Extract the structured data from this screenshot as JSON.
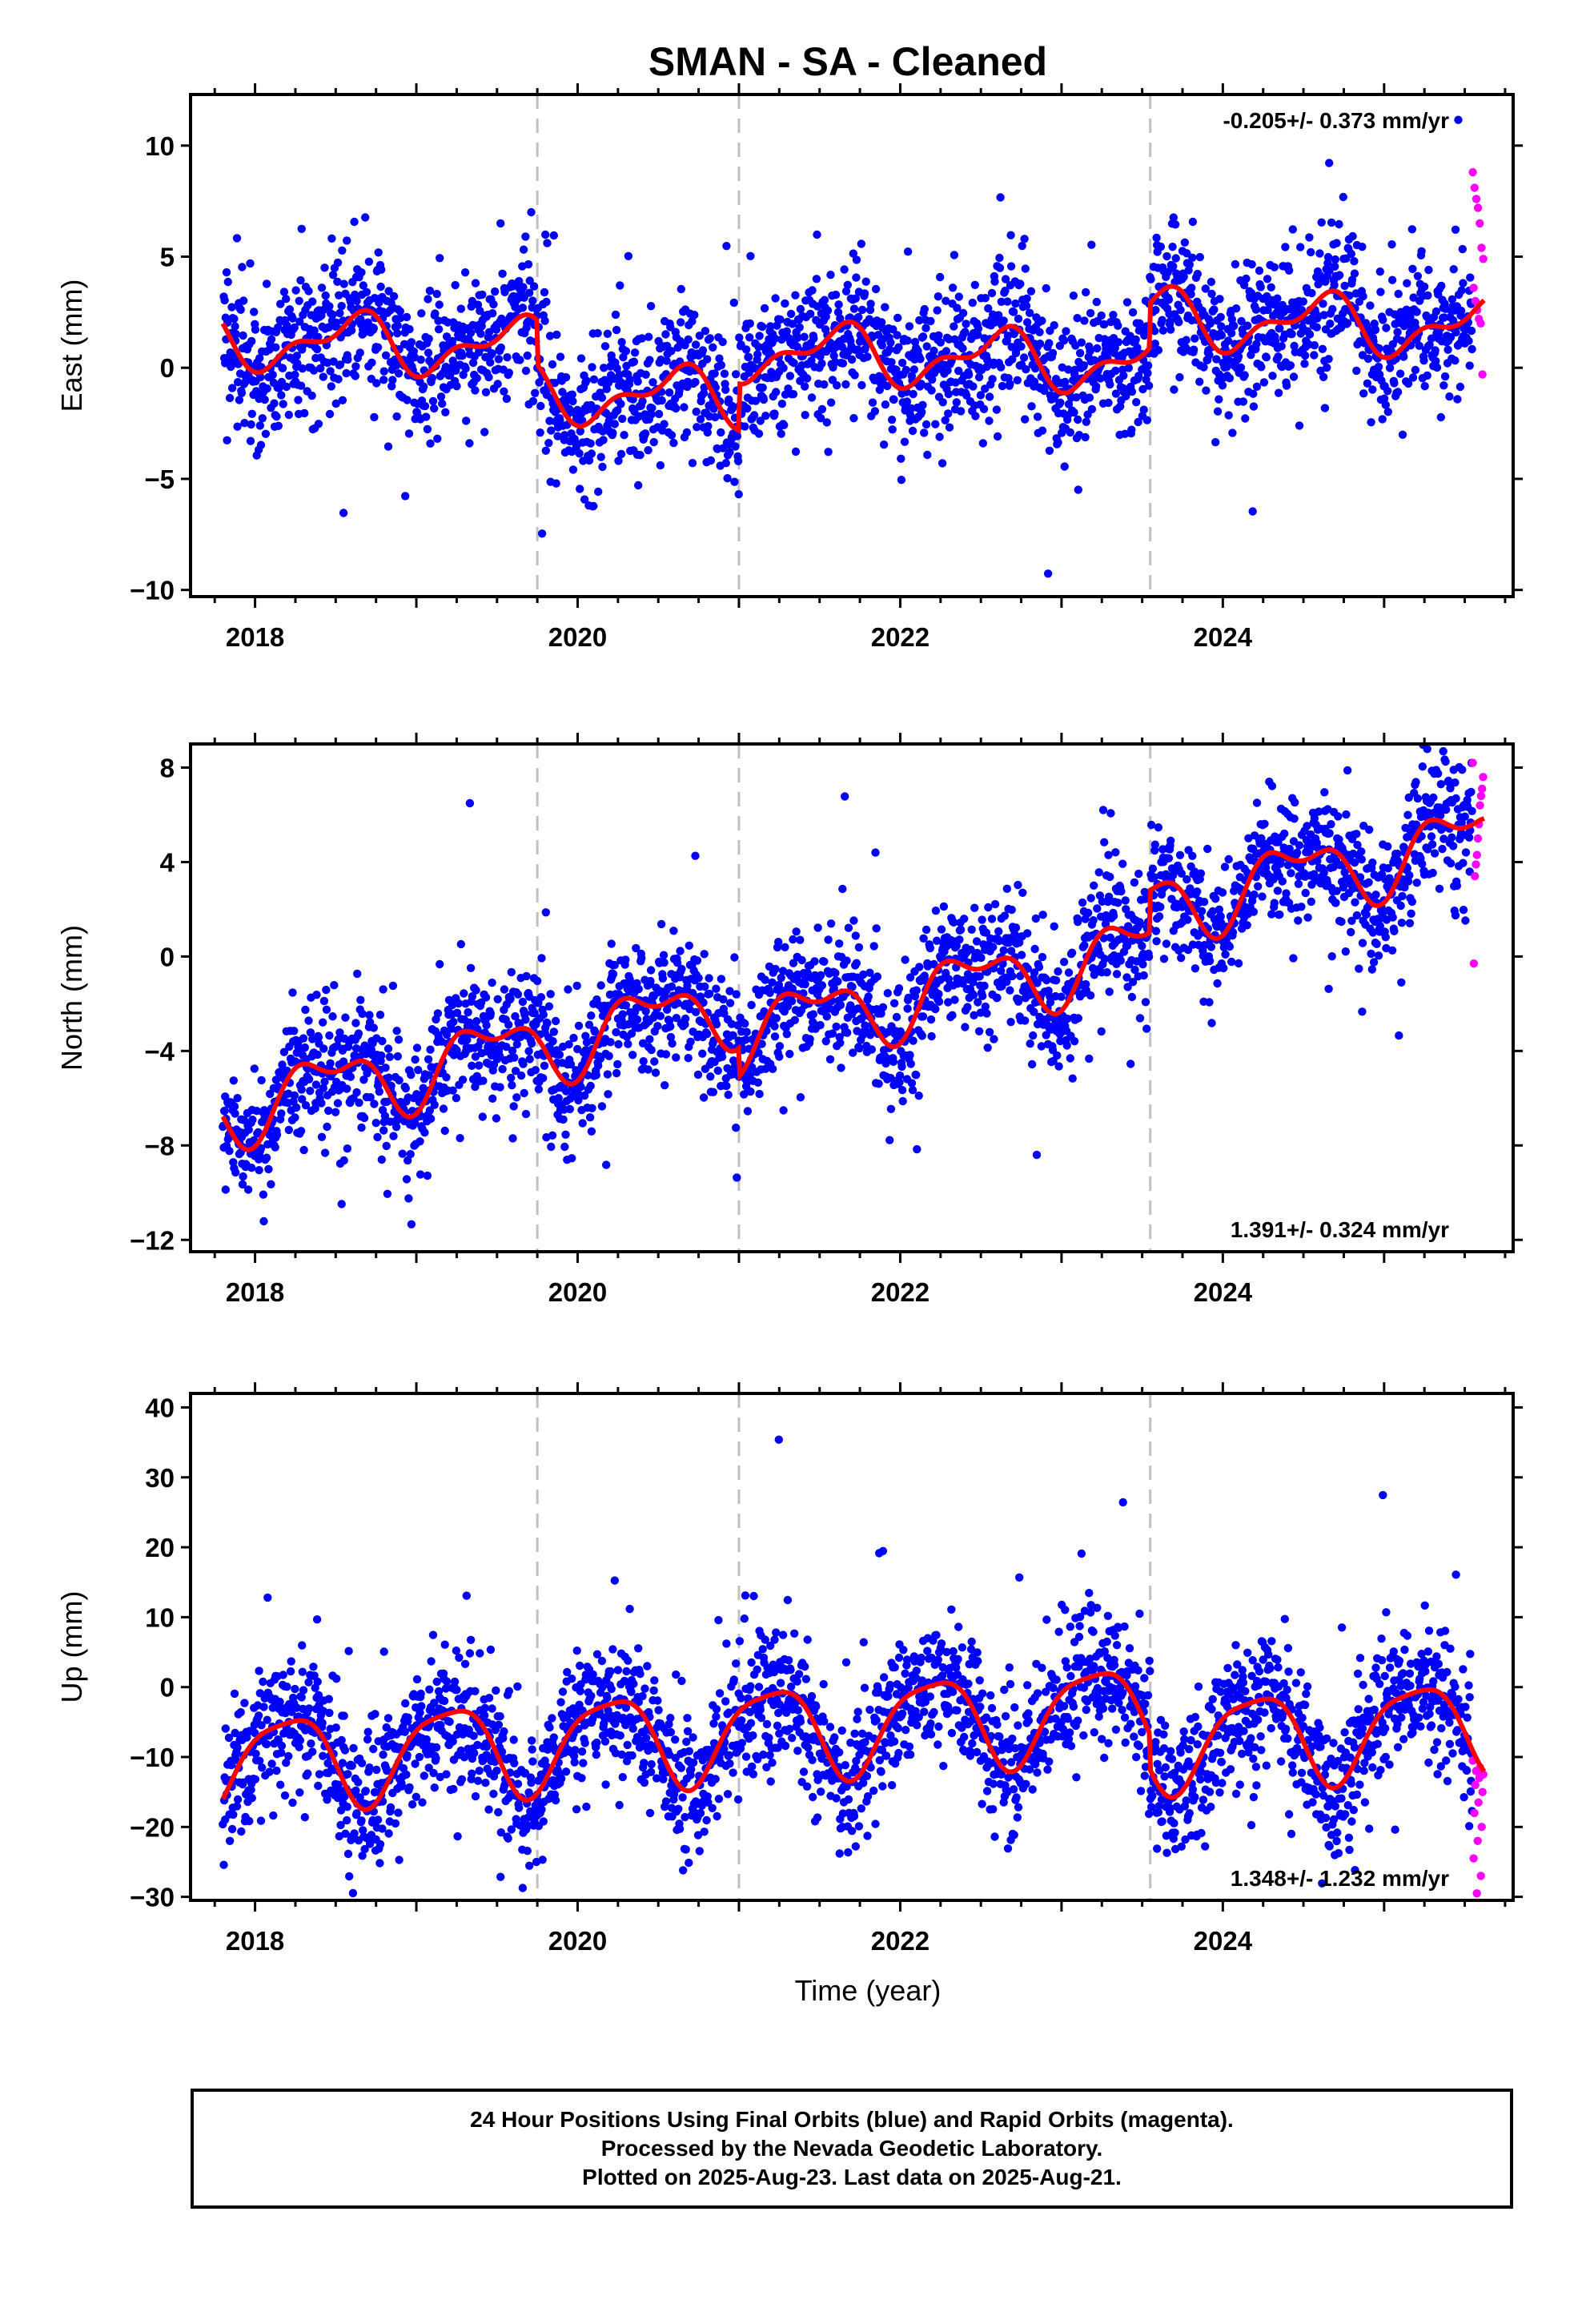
{
  "title": "SMAN  - SA - Cleaned",
  "footer": {
    "line1": "24 Hour Positions Using Final Orbits (blue) and Rapid Orbits (magenta).",
    "line2": "Processed by the Nevada Geodetic Laboratory.",
    "line3": "Plotted on 2025-Aug-23. Last data on 2025-Aug-21."
  },
  "colors": {
    "final": "#0000ff",
    "rapid": "#ff00ff",
    "model": "#ff0000",
    "breaks": "#c0c0c0"
  },
  "chart_data": [
    {
      "type": "scatter",
      "panel": "east",
      "ylabel": "East (mm)",
      "xlabel": "",
      "xlim": [
        2017.6,
        2025.8
      ],
      "ylim": [
        -10.3,
        12.3
      ],
      "yticks": [
        10,
        5,
        0,
        -5,
        -10
      ],
      "ytick_labels": [
        "10",
        "5",
        "0",
        "−5",
        "−10"
      ],
      "xticks": [
        2018,
        2020,
        2022,
        2024
      ],
      "equipment_breaks": [
        2019.75,
        2021.0,
        2023.55
      ],
      "rate_text": "-0.205+/- 0.373 mm/yr",
      "rate_position": "top-right",
      "trend": {
        "slope": -0.205,
        "amp1": 1.1,
        "phase1": 0.35,
        "amp2": 0.6,
        "phase2": 0.1,
        "offset": 0.5,
        "jumps": [
          [
            2019.75,
            -2.0
          ],
          [
            2021.0,
            2.1
          ],
          [
            2023.55,
            2.0
          ]
        ]
      },
      "scatter": {
        "noise": 1.6,
        "outlier_frac": 0.03,
        "outlier_noise": 4.5
      },
      "rapid": {
        "x_start": 2025.55,
        "x_end": 2025.62,
        "values": [
          8.8,
          8.1,
          7.6,
          7.2,
          6.5,
          5.4,
          4.9,
          3.6,
          3.0,
          2.6,
          2.2,
          2.0,
          -0.3
        ]
      }
    },
    {
      "type": "scatter",
      "panel": "north",
      "ylabel": "North (mm)",
      "xlabel": "",
      "xlim": [
        2017.6,
        2025.8
      ],
      "ylim": [
        -12.5,
        9.0
      ],
      "yticks": [
        8,
        4,
        0,
        -4,
        -8,
        -12
      ],
      "ytick_labels": [
        "8",
        "4",
        "0",
        "−4",
        "−8",
        "−12"
      ],
      "xticks": [
        2018,
        2020,
        2022,
        2024
      ],
      "equipment_breaks": [
        2019.75,
        2021.0,
        2023.55
      ],
      "rate_text": "1.391+/- 0.324 mm/yr",
      "rate_position": "bottom-right",
      "trend": {
        "slope": 1.391,
        "amp1": 1.3,
        "phase1": 0.2,
        "amp2": 0.7,
        "phase2": 0.6,
        "offset": -1.0,
        "jumps": [
          [
            2021.0,
            -1.2
          ],
          [
            2023.55,
            1.8
          ]
        ]
      },
      "scatter": {
        "noise": 1.3,
        "outlier_frac": 0.03,
        "outlier_noise": 4.0
      },
      "rapid": {
        "x_start": 2025.55,
        "x_end": 2025.62,
        "values": [
          8.2,
          7.6,
          7.1,
          6.8,
          6.4,
          5.6,
          5.0,
          4.3,
          3.9,
          3.4,
          -0.3
        ]
      }
    },
    {
      "type": "scatter",
      "panel": "up",
      "ylabel": "Up (mm)",
      "xlabel": "Time (year)",
      "xlim": [
        2017.6,
        2025.8
      ],
      "ylim": [
        -30.5,
        42.0
      ],
      "yticks": [
        40,
        30,
        20,
        10,
        0,
        -10,
        -20,
        -30
      ],
      "ytick_labels": [
        "40",
        "30",
        "20",
        "10",
        "0",
        "−10",
        "−20",
        "−30"
      ],
      "xticks": [
        2018,
        2020,
        2022,
        2024
      ],
      "equipment_breaks": [
        2019.75,
        2021.0,
        2023.55
      ],
      "rate_text": "1.348+/- 1.232 mm/yr",
      "rate_position": "bottom-right",
      "trend": {
        "slope": 1.348,
        "amp1": 6.5,
        "phase1": 0.95,
        "amp2": 1.5,
        "phase2": 0.3,
        "offset": -5.5,
        "jumps": [
          [
            2023.55,
            -5.0
          ]
        ]
      },
      "scatter": {
        "noise": 4.8,
        "outlier_frac": 0.04,
        "outlier_noise": 12.0
      },
      "rapid": {
        "x_start": 2025.55,
        "x_end": 2025.62,
        "values": [
          -10.5,
          -11.5,
          -12.0,
          -12.5,
          -13.0,
          -14.0,
          -15.0,
          -16.5,
          -18.0,
          -20.0,
          -22.0,
          -24.5,
          -27.0,
          -29.5
        ]
      }
    }
  ]
}
